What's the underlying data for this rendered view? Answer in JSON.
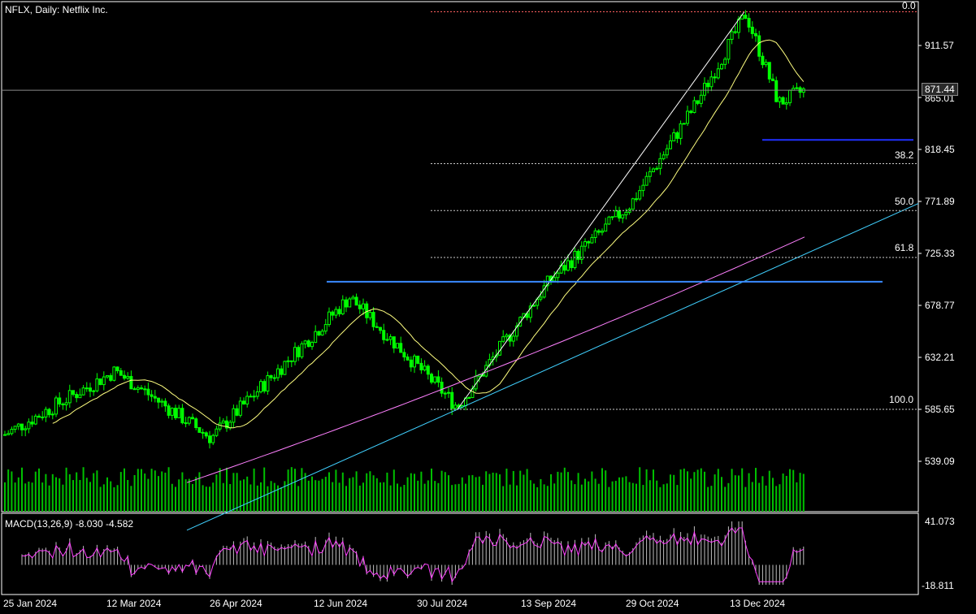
{
  "header": {
    "title": "NFLX, Daily:  Netflix Inc."
  },
  "price_axis": {
    "ticks": [
      "911.57",
      "865.01",
      "818.45",
      "771.89",
      "725.33",
      "678.77",
      "632.21",
      "585.65",
      "539.09"
    ]
  },
  "current_price": "871.44",
  "fib_levels": [
    "0.0",
    "38.2",
    "50.0",
    "61.8",
    "100.0"
  ],
  "macd": {
    "label": "MACD(13,26,9) -8.030 -4.582",
    "axis": [
      "41.073",
      "-18.811"
    ]
  },
  "time_axis": [
    "25 Jan 2024",
    "12 Mar 2024",
    "26 Apr 2024",
    "12 Jun 2024",
    "30 Jul 2024",
    "13 Sep 2024",
    "29 Oct 2024",
    "13 Dec 2024"
  ],
  "colors": {
    "background": "#000000",
    "candle": "#00ff00",
    "volume": "#00c000",
    "ma_fast": "#ffff80",
    "ma_slow": "#ff80ff",
    "trendline": "#40d0ff",
    "horizontal_level": "#3a8aff",
    "support_level": "#2030ff",
    "macd_histogram": "#c0c0c0",
    "macd_signal": "#ff40ff"
  },
  "chart_data": {
    "type": "candlestick",
    "title": "NFLX, Daily:  Netflix Inc.",
    "symbol": "NFLX",
    "timeframe": "Daily",
    "ylim": [
      539.09,
      958
    ],
    "x_range": [
      "2024-01-25",
      "2024-12-31"
    ],
    "fib_retracement": {
      "low": 585.65,
      "high": 941.75,
      "levels": [
        {
          "label": "0.0",
          "price": 941.75
        },
        {
          "label": "38.2",
          "price": 805.72
        },
        {
          "label": "50.0",
          "price": 763.7
        },
        {
          "label": "61.8",
          "price": 721.68
        },
        {
          "label": "100.0",
          "price": 585.65
        }
      ]
    },
    "horizontal_lines": [
      {
        "price": 871.44,
        "kind": "current-price"
      },
      {
        "price": 700.0,
        "kind": "resistance"
      },
      {
        "price": 827.0,
        "kind": "support"
      }
    ],
    "key_points": [
      {
        "date": "2024-01-25",
        "close": 563
      },
      {
        "date": "2024-03-12",
        "close": 620
      },
      {
        "date": "2024-04-22",
        "close": 560
      },
      {
        "date": "2024-06-20",
        "close": 686
      },
      {
        "date": "2024-08-05",
        "close": 588
      },
      {
        "date": "2024-09-13",
        "close": 700
      },
      {
        "date": "2024-10-18",
        "close": 770
      },
      {
        "date": "2024-11-15",
        "close": 860
      },
      {
        "date": "2024-12-06",
        "close": 940
      },
      {
        "date": "2024-12-20",
        "close": 860
      },
      {
        "date": "2024-12-31",
        "close": 871.44
      }
    ],
    "indicators": [
      "MA fast",
      "MA slow",
      "MACD(13,26,9)"
    ],
    "macd": {
      "name": "MACD(13,26,9)",
      "macd": -8.03,
      "signal": -4.582,
      "ylim": [
        -18.811,
        41.073
      ]
    },
    "grid": false
  }
}
